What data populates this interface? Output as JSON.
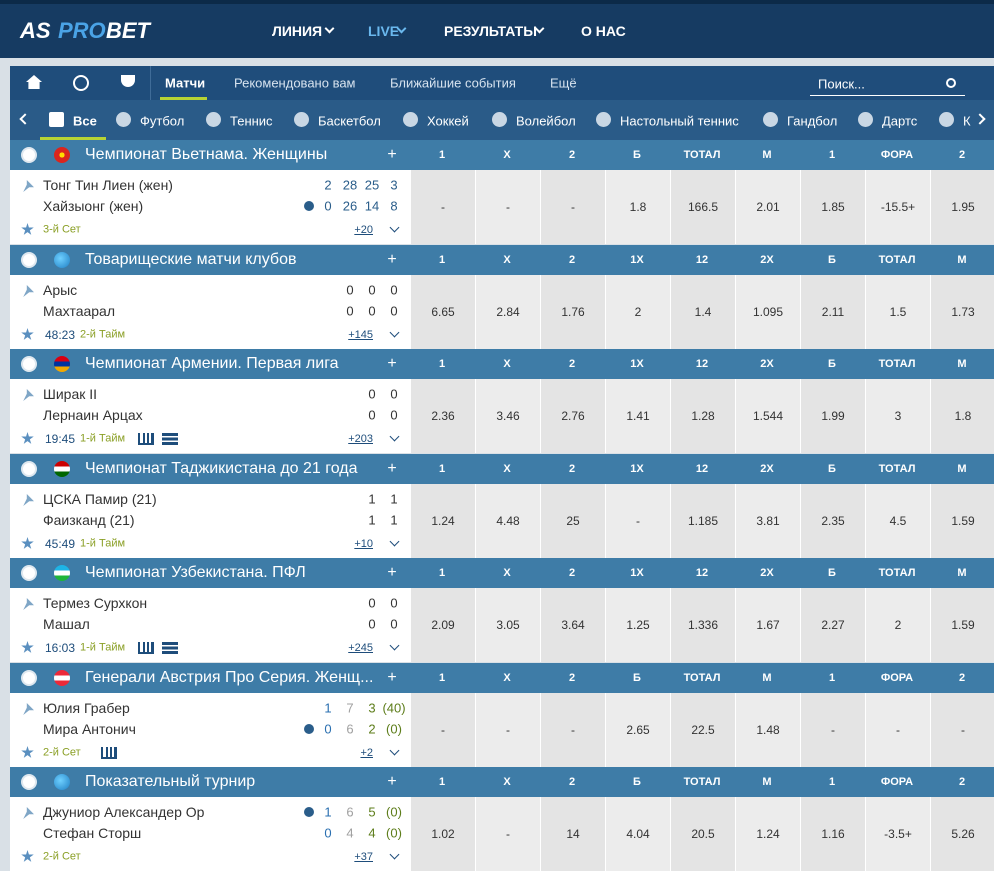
{
  "header": {
    "logo": [
      "AS",
      "PRO",
      "BET"
    ],
    "nav": [
      "ЛИНИЯ",
      "LIVE",
      "РЕЗУЛЬТАТЫ",
      "О НАС"
    ]
  },
  "subnav": {
    "tabs": [
      "Матчи",
      "Рекомендовано вам",
      "Ближайшие события",
      "Ещё"
    ],
    "search": "Поиск..."
  },
  "sports": [
    "Все",
    "Футбол",
    "Теннис",
    "Баскетбол",
    "Хоккей",
    "Волейбол",
    "Настольный теннис",
    "Гандбол",
    "Дартс",
    "К"
  ],
  "leagues": [
    {
      "sport": "volleyball",
      "flag": "vn",
      "name": "Чемпионат Вьетнама. Женщины",
      "toggle": "+",
      "markets": [
        "1",
        "X",
        "2",
        "Б",
        "ТОТАЛ",
        "М",
        "1",
        "ФОРА",
        "2"
      ],
      "teams": [
        {
          "name": "Тонг Тин Лиен (жен)",
          "scores": [
            "2",
            "28",
            "25",
            "3"
          ]
        },
        {
          "name": "Хайзыонг (жен)",
          "scores": [
            "0",
            "26",
            "14",
            "8"
          ],
          "serve": true
        }
      ],
      "period": "3-й Сет",
      "more": "+20",
      "odds": [
        "-",
        "-",
        "-",
        "1.8",
        "166.5",
        "2.01",
        "1.85",
        "-15.5+",
        "1.95"
      ]
    },
    {
      "sport": "football",
      "flag": "world",
      "name": "Товарищеские матчи клубов",
      "toggle": "+",
      "markets": [
        "1",
        "X",
        "2",
        "1X",
        "12",
        "2X",
        "Б",
        "ТОТАЛ",
        "М"
      ],
      "teams": [
        {
          "name": "Арыс",
          "scores": [
            "0",
            "0",
            "0"
          ]
        },
        {
          "name": "Махтаарал",
          "scores": [
            "0",
            "0",
            "0"
          ]
        }
      ],
      "clock": "48:23",
      "period": "2-й Тайм",
      "more": "+145",
      "odds": [
        "6.65",
        "2.84",
        "1.76",
        "2",
        "1.4",
        "1.095",
        "2.11",
        "1.5",
        "1.73"
      ]
    },
    {
      "sport": "football",
      "flag": "am",
      "name": "Чемпионат Армении. Первая лига",
      "toggle": "+",
      "markets": [
        "1",
        "X",
        "2",
        "1X",
        "12",
        "2X",
        "Б",
        "ТОТАЛ",
        "М"
      ],
      "teams": [
        {
          "name": "Ширак II",
          "scores": [
            "0",
            "0"
          ]
        },
        {
          "name": "Лернаин Арцах",
          "scores": [
            "0",
            "0"
          ]
        }
      ],
      "clock": "19:45",
      "period": "1-й Тайм",
      "stats": true,
      "list": true,
      "more": "+203",
      "odds": [
        "2.36",
        "3.46",
        "2.76",
        "1.41",
        "1.28",
        "1.544",
        "1.99",
        "3",
        "1.8"
      ]
    },
    {
      "sport": "football",
      "flag": "tj",
      "name": "Чемпионат Таджикистана до 21 года",
      "toggle": "+",
      "markets": [
        "1",
        "X",
        "2",
        "1X",
        "12",
        "2X",
        "Б",
        "ТОТАЛ",
        "М"
      ],
      "teams": [
        {
          "name": "ЦСКА Памир (21)",
          "scores": [
            "1",
            "1"
          ]
        },
        {
          "name": "Фаизканд (21)",
          "scores": [
            "1",
            "1"
          ]
        }
      ],
      "clock": "45:49",
      "period": "1-й Тайм",
      "more": "+10",
      "odds": [
        "1.24",
        "4.48",
        "25",
        "-",
        "1.185",
        "3.81",
        "2.35",
        "4.5",
        "1.59"
      ]
    },
    {
      "sport": "football",
      "flag": "uz",
      "name": "Чемпионат Узбекистана. ПФЛ",
      "toggle": "+",
      "markets": [
        "1",
        "X",
        "2",
        "1X",
        "12",
        "2X",
        "Б",
        "ТОТАЛ",
        "М"
      ],
      "teams": [
        {
          "name": "Термез Сурхкон",
          "scores": [
            "0",
            "0"
          ]
        },
        {
          "name": "Машал",
          "scores": [
            "0",
            "0"
          ]
        }
      ],
      "clock": "16:03",
      "period": "1-й Тайм",
      "stats": true,
      "list": true,
      "more": "+245",
      "odds": [
        "2.09",
        "3.05",
        "3.64",
        "1.25",
        "1.336",
        "1.67",
        "2.27",
        "2",
        "1.59"
      ]
    },
    {
      "sport": "tennis",
      "flag": "at",
      "name": "Генерали Австрия Про Серия. Женщ...",
      "toggle": "+",
      "markets": [
        "1",
        "X",
        "2",
        "Б",
        "ТОТАЛ",
        "М",
        "1",
        "ФОРА",
        "2"
      ],
      "teams": [
        {
          "name": "Юлия Грабер",
          "scores": [
            "1",
            "7",
            "3",
            "(40)"
          ]
        },
        {
          "name": "Мира Антонич",
          "scores": [
            "0",
            "6",
            "2",
            "(0)"
          ],
          "serve": true
        }
      ],
      "period": "2-й Сет",
      "stats": true,
      "more": "+2",
      "odds": [
        "-",
        "-",
        "-",
        "2.65",
        "22.5",
        "1.48",
        "-",
        "-",
        "-"
      ]
    },
    {
      "sport": "tennis",
      "flag": "world",
      "name": "Показательный турнир",
      "toggle": "+",
      "markets": [
        "1",
        "X",
        "2",
        "Б",
        "ТОТАЛ",
        "М",
        "1",
        "ФОРА",
        "2"
      ],
      "teams": [
        {
          "name": "Джуниор Александер Ор",
          "scores": [
            "1",
            "6",
            "5",
            "(0)"
          ],
          "serve": true
        },
        {
          "name": "Стефан Сторш",
          "scores": [
            "0",
            "4",
            "4",
            "(0)"
          ]
        }
      ],
      "period": "2-й Сет",
      "more": "+37",
      "odds": [
        "1.02",
        "-",
        "14",
        "4.04",
        "20.5",
        "1.24",
        "1.16",
        "-3.5+",
        "5.26"
      ]
    }
  ]
}
